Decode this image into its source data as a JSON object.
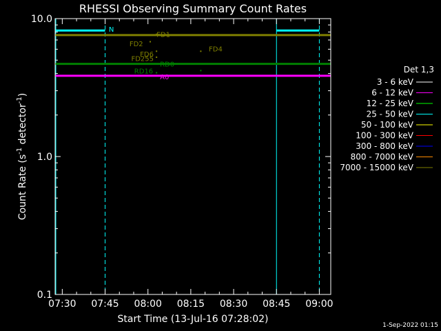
{
  "chart_data": {
    "type": "line",
    "title": "RHESSI Observing Summary Count Rates",
    "xlabel": "Start Time (13-Jul-16 07:28:02)",
    "ylabel_main": "Count Rate (s",
    "ylabel_sup1": "-1",
    "ylabel_mid": " detector",
    "ylabel_sup2": "-1",
    "ylabel_end": ")",
    "y_scale": "log",
    "ylim": [
      0.1,
      10.0
    ],
    "xlim_minutes_from_0730": [
      -2.5,
      94
    ],
    "x_ticks": [
      {
        "label": "07:30",
        "min": 0
      },
      {
        "label": "07:45",
        "min": 15
      },
      {
        "label": "08:00",
        "min": 30
      },
      {
        "label": "08:15",
        "min": 45
      },
      {
        "label": "08:30",
        "min": 60
      },
      {
        "label": "08:45",
        "min": 75
      },
      {
        "label": "09:00",
        "min": 90
      }
    ],
    "y_ticks": [
      {
        "label": "0.1",
        "value": 0.1
      },
      {
        "label": "1.0",
        "value": 1.0
      },
      {
        "label": "10.0",
        "value": 10.0
      }
    ],
    "legend_title": "Det 1,3",
    "legend_position": "right",
    "series": [
      {
        "name": "3 - 6 keV",
        "color": "#ffffff"
      },
      {
        "name": "6 - 12 keV",
        "color": "#ff00ff"
      },
      {
        "name": "12 - 25 keV",
        "color": "#00ff00"
      },
      {
        "name": "25 - 50 keV",
        "color": "#00ffff"
      },
      {
        "name": "50 - 100 keV",
        "color": "#ffff00"
      },
      {
        "name": "100 - 300 keV",
        "color": "#ff0000"
      },
      {
        "name": "300 - 800 keV",
        "color": "#0000ff"
      },
      {
        "name": "800 - 7000 keV",
        "color": "#ff8c00"
      },
      {
        "name": "7000 - 15000 keV",
        "color": "#808000"
      }
    ],
    "levels": [
      {
        "color": "#808000",
        "value": 7.6,
        "from_min": -2.5,
        "to_min": 94
      },
      {
        "color": "#008000",
        "value": 4.7,
        "from_min": -2.5,
        "to_min": 94
      },
      {
        "color": "#ff00ff",
        "value": 3.85,
        "from_min": -2.5,
        "to_min": 94
      },
      {
        "color": "#00ffff",
        "value": 8.2,
        "from_min": -2.5,
        "to_min": 15
      },
      {
        "color": "#00ffff",
        "value": 8.2,
        "from_min": 75,
        "to_min": 90
      }
    ],
    "night_lines": [
      {
        "min": -2.5,
        "style": "solid"
      },
      {
        "min": 15,
        "style": "dashed"
      },
      {
        "min": 75,
        "style": "solid"
      },
      {
        "min": 90,
        "style": "dashed"
      }
    ],
    "annotations": [
      {
        "text": "N",
        "min": 16.3,
        "value": 8.4,
        "color": "#00ffff",
        "anchor": "start",
        "dot": false
      },
      {
        "text": "FD1",
        "min": 33.0,
        "value": 7.7,
        "color": "#808000",
        "anchor": "start",
        "dot": true,
        "dot_min": 33.0,
        "dot_value": 7.7
      },
      {
        "text": "FD2",
        "min": 28.3,
        "value": 6.6,
        "color": "#808000",
        "anchor": "end",
        "dot": true,
        "dot_min": 30.8,
        "dot_value": 6.8
      },
      {
        "text": "FD6",
        "min": 32.0,
        "value": 5.55,
        "color": "#808000",
        "anchor": "end",
        "dot": true,
        "dot_min": 33.0,
        "dot_value": 5.8
      },
      {
        "text": "FD255",
        "min": 32.0,
        "value": 5.15,
        "color": "#808000",
        "anchor": "end",
        "dot": true,
        "dot_min": 33.0,
        "dot_value": 5.25
      },
      {
        "text": "FD4",
        "min": 51.3,
        "value": 6.05,
        "color": "#808000",
        "anchor": "start",
        "dot": true,
        "dot_min": 48.5,
        "dot_value": 5.8
      },
      {
        "text": "RD0",
        "min": 34.2,
        "value": 4.7,
        "color": "#008000",
        "anchor": "start",
        "dot": false
      },
      {
        "text": "RD16",
        "min": 31.8,
        "value": 4.2,
        "color": "#008000",
        "anchor": "end",
        "dot": true,
        "dot_min": 33.0,
        "dot_value": 4.05
      },
      {
        "text": "A0",
        "min": 34.2,
        "value": 3.8,
        "color": "#ff00ff",
        "anchor": "start",
        "dot": false
      },
      {
        "text": "",
        "min": 48.5,
        "value": 4.2,
        "color": "#008000",
        "anchor": "start",
        "dot": true,
        "dot_min": 48.5,
        "dot_value": 4.2
      }
    ],
    "footer_timestamp": "1-Sep-2022 01:15"
  }
}
